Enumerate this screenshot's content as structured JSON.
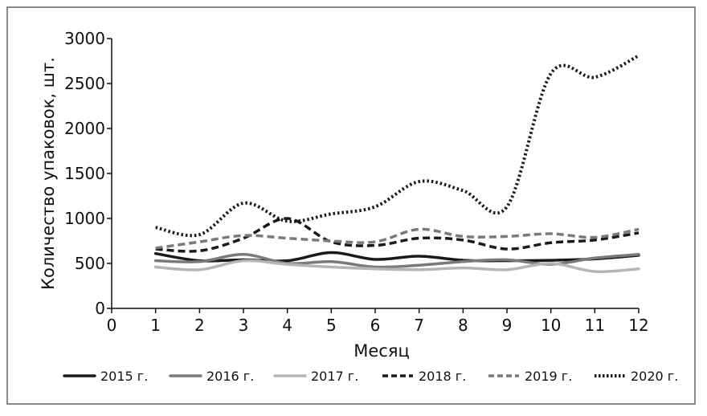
{
  "chart_data": {
    "type": "line",
    "title": "",
    "xlabel": "Месяц",
    "ylabel": "Количество упаковок, шт.",
    "xlim": [
      0,
      12
    ],
    "ylim": [
      0,
      3000
    ],
    "x_ticks": [
      "0",
      "1",
      "2",
      "3",
      "4",
      "5",
      "6",
      "7",
      "8",
      "9",
      "10",
      "11",
      "12"
    ],
    "y_ticks": [
      "0",
      "500",
      "1000",
      "1500",
      "2000",
      "2500",
      "3000"
    ],
    "x": [
      1,
      2,
      3,
      4,
      5,
      6,
      7,
      8,
      9,
      10,
      11,
      12
    ],
    "grid": false,
    "legend_position": "bottom",
    "series": [
      {
        "name": "2015 г.",
        "color": "#1a1a1a",
        "style": "solid",
        "values": [
          610,
          530,
          540,
          530,
          620,
          545,
          580,
          535,
          530,
          535,
          550,
          590
        ]
      },
      {
        "name": "2016 г.",
        "color": "#7a7a7a",
        "style": "solid",
        "values": [
          530,
          520,
          600,
          500,
          520,
          460,
          480,
          520,
          540,
          490,
          560,
          600
        ]
      },
      {
        "name": "2017 г.",
        "color": "#b5b5b5",
        "style": "solid",
        "values": [
          460,
          430,
          530,
          490,
          460,
          440,
          430,
          450,
          430,
          500,
          410,
          440
        ]
      },
      {
        "name": "2018 г.",
        "color": "#1a1a1a",
        "style": "dashed",
        "values": [
          660,
          640,
          780,
          1000,
          740,
          700,
          780,
          760,
          660,
          730,
          760,
          840
        ]
      },
      {
        "name": "2019 г.",
        "color": "#7a7a7a",
        "style": "dashed",
        "values": [
          670,
          740,
          810,
          780,
          750,
          740,
          880,
          800,
          800,
          830,
          790,
          880
        ]
      },
      {
        "name": "2020 г.",
        "color": "#1a1a1a",
        "style": "dotted",
        "values": [
          900,
          820,
          1170,
          970,
          1050,
          1130,
          1410,
          1310,
          1130,
          2610,
          2570,
          2810
        ]
      }
    ]
  }
}
